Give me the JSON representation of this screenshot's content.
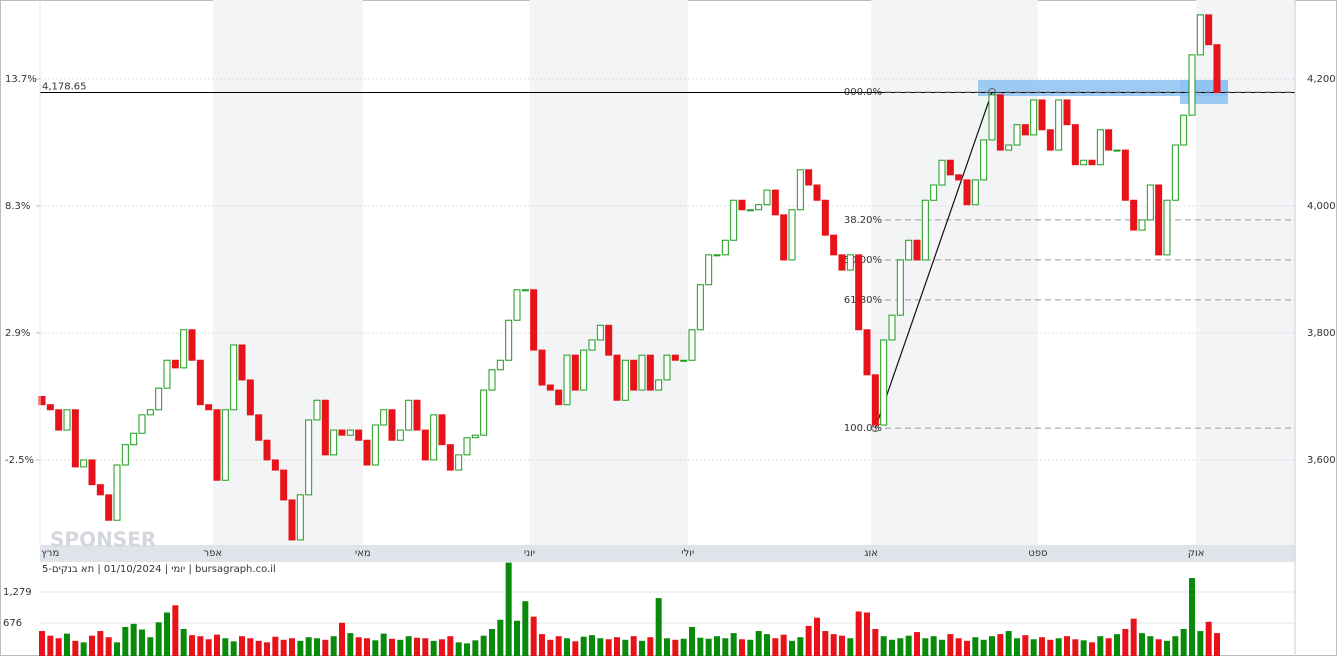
{
  "chart_data": {
    "type": "candlestick",
    "up_color": "#1a9b1a",
    "down_color": "#e8121a",
    "open": [
      3700,
      3687,
      3679,
      3647,
      3679,
      3589,
      3600,
      3561,
      3545,
      3505,
      3592,
      3624,
      3642,
      3671,
      3679,
      3713,
      3757,
      3745,
      3805,
      3757,
      3687,
      3679,
      3568,
      3679,
      3781,
      3726,
      3671,
      3631,
      3600,
      3584,
      3537,
      3474,
      3545,
      3663,
      3694,
      3608,
      3647,
      3639,
      3647,
      3631,
      3592,
      3655,
      3679,
      3631,
      3647,
      3694,
      3647,
      3600,
      3671,
      3624,
      3584,
      3608,
      3635,
      3639,
      3710,
      3742,
      3757,
      3820,
      3868,
      3868,
      3773,
      3718,
      3710,
      3687,
      3765,
      3710,
      3773,
      3789,
      3812,
      3765,
      3694,
      3757,
      3710,
      3765,
      3710,
      3726,
      3765,
      3757,
      3757,
      3805,
      3876,
      3923,
      3923,
      3946,
      4009,
      3994,
      3994,
      4002,
      4025,
      3986,
      3915,
      3994,
      4057,
      4033,
      4009,
      3954,
      3923,
      3899,
      3923,
      3805,
      3734,
      3655,
      3789,
      3828,
      3915,
      3946,
      3915,
      4009,
      4033,
      4072,
      4049,
      4041,
      4002,
      4041,
      4104,
      4175,
      4088,
      4096,
      4128,
      4112,
      4167,
      4120,
      4088,
      4167,
      4128,
      4065,
      4072,
      4065,
      4120,
      4088,
      4088,
      4009,
      3962,
      3978,
      4033,
      3923,
      4009,
      4096,
      4143,
      4238,
      4301,
      4254
    ],
    "close": [
      3687,
      3679,
      3647,
      3679,
      3589,
      3600,
      3561,
      3545,
      3505,
      3592,
      3624,
      3642,
      3671,
      3679,
      3713,
      3757,
      3745,
      3805,
      3757,
      3687,
      3679,
      3568,
      3679,
      3781,
      3726,
      3671,
      3631,
      3600,
      3584,
      3537,
      3474,
      3545,
      3663,
      3694,
      3608,
      3647,
      3639,
      3647,
      3631,
      3592,
      3655,
      3679,
      3631,
      3647,
      3694,
      3647,
      3600,
      3671,
      3624,
      3584,
      3608,
      3635,
      3639,
      3710,
      3742,
      3757,
      3820,
      3868,
      3868,
      3773,
      3718,
      3710,
      3687,
      3765,
      3710,
      3773,
      3789,
      3812,
      3765,
      3694,
      3757,
      3710,
      3765,
      3710,
      3726,
      3765,
      3757,
      3757,
      3805,
      3876,
      3923,
      3923,
      3946,
      4009,
      3994,
      3994,
      4002,
      4025,
      3986,
      3915,
      3994,
      4057,
      4033,
      4009,
      3954,
      3923,
      3899,
      3923,
      3805,
      3734,
      3655,
      3789,
      3828,
      3915,
      3946,
      3915,
      4009,
      4033,
      4072,
      4049,
      4041,
      4002,
      4041,
      4104,
      4175,
      4088,
      4096,
      4128,
      4112,
      4167,
      4120,
      4088,
      4167,
      4128,
      4065,
      4072,
      4065,
      4120,
      4088,
      4088,
      4009,
      3962,
      3978,
      4033,
      3923,
      4009,
      4096,
      4143,
      4238,
      4301,
      4254,
      4178.65
    ],
    "ylim": [
      3466,
      4324.4
    ],
    "yticks": [
      {
        "value": 3600,
        "label": "3,600"
      },
      {
        "value": 3800,
        "label": "3,800"
      },
      {
        "value": 4000,
        "label": "4,000"
      },
      {
        "value": 4200,
        "label": "4,200"
      }
    ],
    "y2lim": [
      -6.12,
      17.06
    ],
    "y2ticks": [
      {
        "value": -2.5,
        "label": "-2.5%"
      },
      {
        "value": 2.9,
        "label": "2.9%"
      },
      {
        "value": 8.3,
        "label": "8.3%"
      },
      {
        "value": 13.7,
        "label": "13.7%"
      }
    ],
    "xticks": [
      {
        "value": 1,
        "label": "מרץ"
      },
      {
        "value": 20.5,
        "label": "אפר"
      },
      {
        "value": 38.5,
        "label": "מאי"
      },
      {
        "value": 58.5,
        "label": "יוני"
      },
      {
        "value": 77.5,
        "label": "יולי"
      },
      {
        "value": 99.5,
        "label": "אוג"
      },
      {
        "value": 119.5,
        "label": "ספט"
      },
      {
        "value": 138.5,
        "label": "אוק"
      }
    ],
    "grid": true,
    "last_price": {
      "value": 4178.65,
      "label": "4,178.65"
    },
    "fibonacci": [
      {
        "value": 4179.5,
        "label": "000.0%"
      },
      {
        "value": 3978,
        "label": "38.20%"
      },
      {
        "value": 3915,
        "label": "50.00%"
      },
      {
        "value": 3852,
        "label": "61.80%"
      },
      {
        "value": 3650,
        "label": "100.0%"
      }
    ],
    "caption": "יומי | 01/10/2024 | תא בנקים-5 | bursagraph.co.il",
    "watermark": "SPONSER",
    "volume": {
      "values": [
        520,
        430,
        380,
        470,
        330,
        300,
        430,
        520,
        400,
        300,
        600,
        660,
        550,
        400,
        690,
        880,
        1020,
        560,
        440,
        420,
        360,
        450,
        380,
        320,
        420,
        380,
        330,
        300,
        410,
        350,
        380,
        330,
        400,
        380,
        350,
        420,
        680,
        480,
        400,
        380,
        340,
        470,
        370,
        350,
        420,
        390,
        380,
        330,
        360,
        420,
        300,
        280,
        340,
        430,
        560,
        740,
        1850,
        720,
        1100,
        800,
        460,
        350,
        420,
        380,
        320,
        410,
        440,
        380,
        360,
        400,
        350,
        420,
        330,
        400,
        1160,
        380,
        350,
        370,
        600,
        390,
        370,
        420,
        380,
        480,
        360,
        350,
        520,
        460,
        380,
        450,
        330,
        400,
        620,
        780,
        520,
        460,
        430,
        380,
        900,
        880,
        560,
        420,
        350,
        380,
        430,
        500,
        380,
        420,
        350,
        460,
        380,
        330,
        400,
        350,
        420,
        460,
        520,
        380,
        440,
        360,
        400,
        350,
        380,
        420,
        360,
        340,
        300,
        420,
        380,
        460,
        560,
        760,
        480,
        420,
        360,
        330,
        420,
        560,
        1550,
        520,
        700,
        480
      ],
      "ylim": [
        0,
        1862
      ],
      "yticks": [
        676,
        {
          "value": 1279,
          "label": "1,279"
        }
      ]
    }
  }
}
